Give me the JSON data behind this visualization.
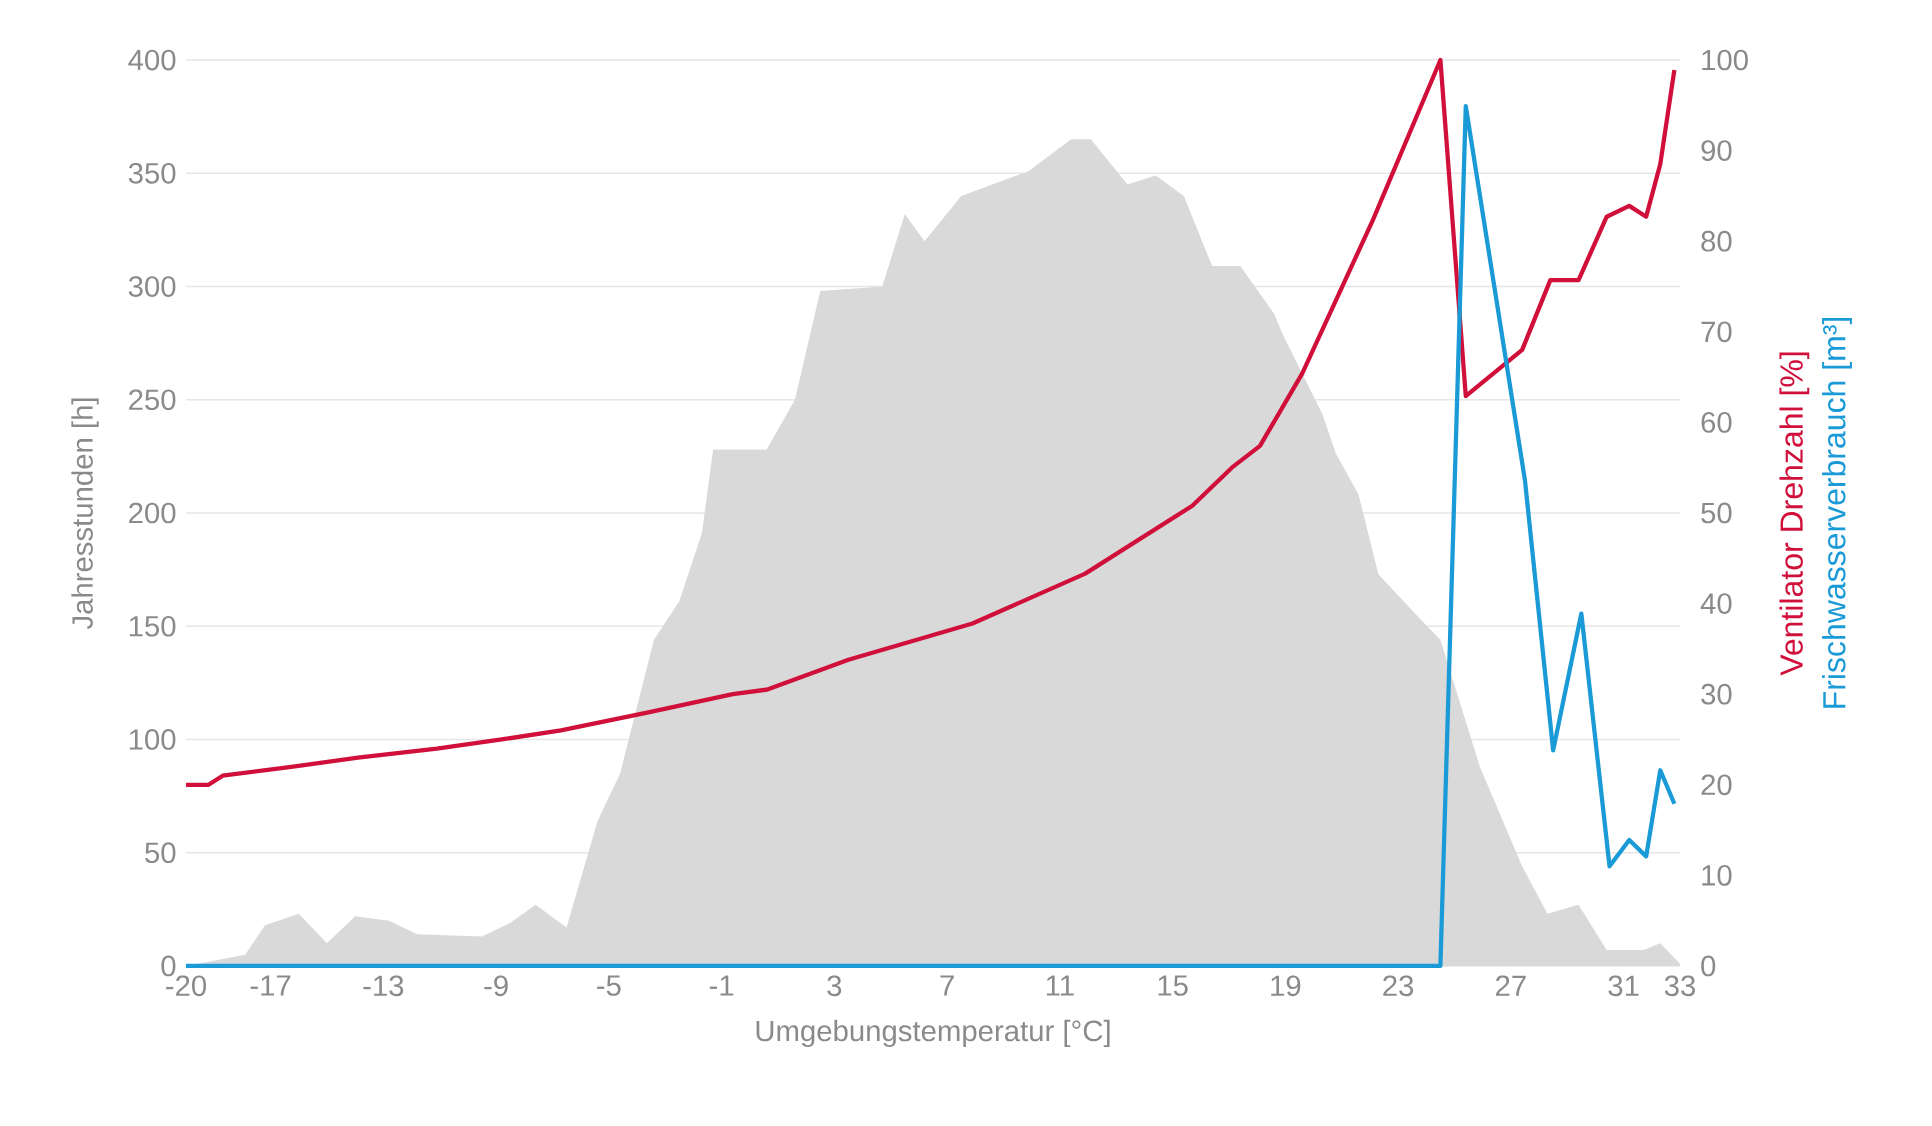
{
  "chart_data": {
    "type": "area",
    "xlabel": "Umgebungstemperatur [°C]",
    "ylabel": "Jahresstunden [h]",
    "xlim": [
      -20,
      33
    ],
    "xticks": [
      -20,
      -17,
      -13,
      -9,
      -5,
      -1,
      3,
      7,
      11,
      15,
      19,
      23,
      27,
      31,
      33
    ],
    "ylim": [
      0,
      400
    ],
    "yticks": [
      0,
      50,
      100,
      150,
      200,
      250,
      300,
      350,
      400
    ],
    "y2lim": [
      0,
      100
    ],
    "y2ticks": [
      0,
      10,
      20,
      30,
      40,
      50,
      60,
      70,
      80,
      90,
      100
    ],
    "grid": "y",
    "series": [
      {
        "color": "#d9d9d9",
        "x": [
          -20,
          -17.9,
          -17.2,
          -16,
          -15,
          -14,
          -12.8,
          -11.8,
          -9.5,
          -8.5,
          -7.6,
          -6.5,
          -5.4,
          -4.6,
          -3.4,
          -2.5,
          -1.7,
          -1.3,
          0.6,
          1.6,
          2.5,
          4.7,
          5.5,
          6.2,
          7.5,
          9.9,
          11.4,
          12.1,
          13.4,
          14.4,
          15.4,
          16.4,
          17.4,
          18.6,
          18.9,
          20.3,
          20.8,
          21.6,
          22.3,
          23.8,
          24.5,
          25.9,
          27.4,
          28.3,
          29.4,
          30.4,
          31.7,
          32.3,
          33
        ],
        "values": [
          0,
          5,
          18,
          23,
          10,
          22,
          20,
          14,
          13,
          19,
          27,
          17,
          64,
          85,
          144,
          161,
          191,
          228,
          228,
          250,
          298,
          300,
          332,
          320,
          340,
          351,
          365,
          365,
          345,
          349,
          340,
          309,
          309,
          288,
          279,
          244,
          226,
          208,
          173,
          153,
          144,
          88,
          44,
          23,
          27,
          7,
          7,
          10,
          1
        ]
      },
      {
        "type": "line",
        "axis": "y2",
        "name": "Ventilator Drehzahl [%]",
        "color": "#d0103a",
        "x": [
          -20,
          -19.2,
          -18.7,
          -16.2,
          -13.9,
          -11.1,
          -8.8,
          -6.7,
          -3.6,
          -0.6,
          0.6,
          3.5,
          7.9,
          11.9,
          15.7,
          17.1,
          18.1,
          19.6,
          22.1,
          24.5,
          25.4,
          27.4,
          28.4,
          29.4,
          30.4,
          31.2,
          31.8,
          32.3,
          32.8
        ],
        "values": [
          20,
          20,
          21,
          22,
          23,
          24,
          25,
          26,
          28,
          30,
          30.5,
          33.8,
          37.8,
          43.3,
          50.8,
          55,
          57.4,
          65.4,
          82.3,
          100,
          62.9,
          68,
          75.7,
          75.7,
          82.7,
          83.9,
          82.7,
          88.5,
          98.9
        ]
      },
      {
        "type": "line",
        "axis": "y2",
        "name": "Frischwasserverbrauch [m³]",
        "color": "#1a9ad6",
        "x": [
          -20,
          24.5,
          25.4,
          27.5,
          28.5,
          29.5,
          30.5,
          31.2,
          31.8,
          32.3,
          32.8
        ],
        "values": [
          0,
          0,
          94.9,
          53.6,
          23.8,
          38.9,
          11,
          13.9,
          12.1,
          21.6,
          17.9
        ]
      }
    ]
  }
}
